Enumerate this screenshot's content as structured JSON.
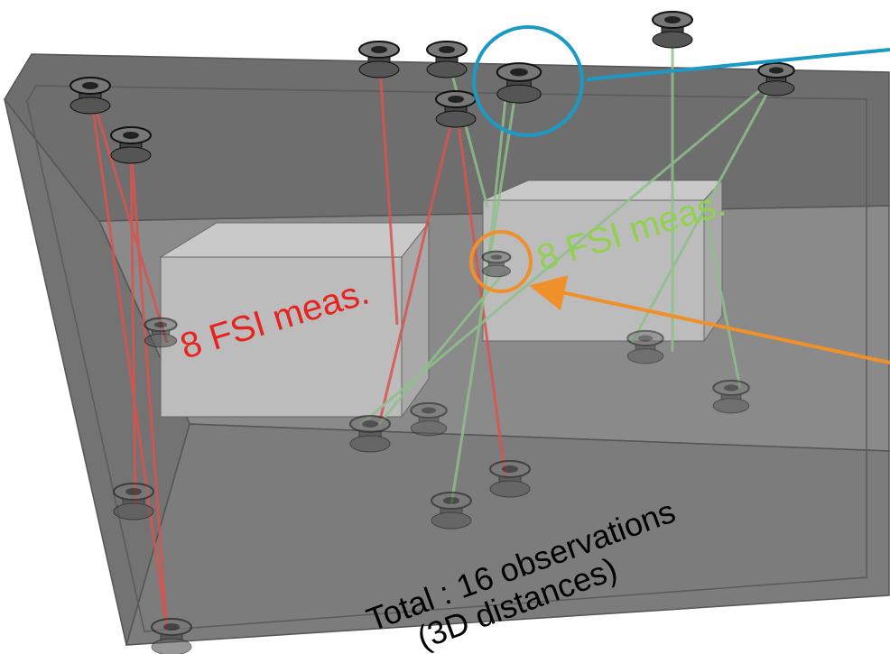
{
  "annotations": {
    "left_group": "8 FSI meas.",
    "right_group": "8 FSI meas.",
    "total": "Total : 16 observations",
    "total_note": "(3D distances)"
  }
}
